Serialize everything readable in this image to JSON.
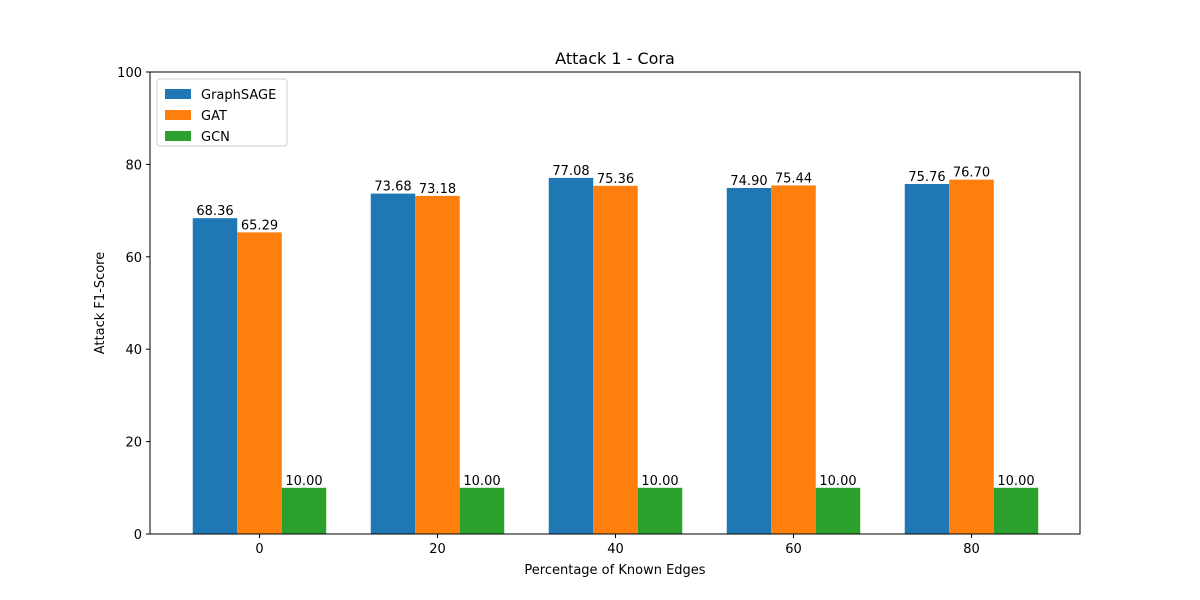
{
  "chart_data": {
    "type": "bar",
    "title": "Attack 1 - Cora",
    "xlabel": "Percentage of Known Edges",
    "ylabel": "Attack F1-Score",
    "categories": [
      "0",
      "20",
      "40",
      "60",
      "80"
    ],
    "ylim": [
      0,
      100
    ],
    "yticks": [
      0,
      20,
      40,
      60,
      80,
      100
    ],
    "grid": false,
    "legend_position": "top-left",
    "series": [
      {
        "name": "GraphSAGE",
        "color": "#1f77b4",
        "values": [
          68.36,
          73.68,
          77.08,
          74.9,
          75.76
        ],
        "labels": [
          "68.36",
          "73.68",
          "77.08",
          "74.90",
          "75.76"
        ]
      },
      {
        "name": "GAT",
        "color": "#ff7f0e",
        "values": [
          65.29,
          73.18,
          75.36,
          75.44,
          76.7
        ],
        "labels": [
          "65.29",
          "73.18",
          "75.36",
          "75.44",
          "76.70"
        ]
      },
      {
        "name": "GCN",
        "color": "#2ca02c",
        "values": [
          10.0,
          10.0,
          10.0,
          10.0,
          10.0
        ],
        "labels": [
          "10.00",
          "10.00",
          "10.00",
          "10.00",
          "10.00"
        ]
      }
    ]
  }
}
